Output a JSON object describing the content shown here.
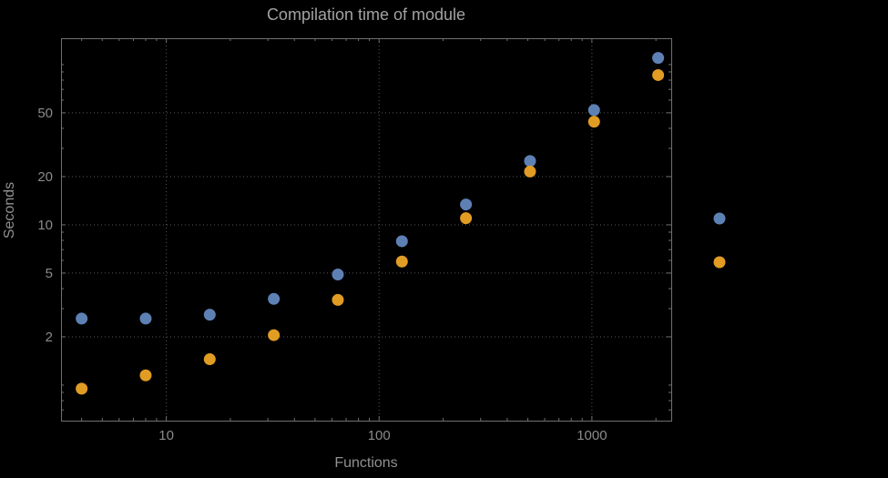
{
  "chart_data": {
    "type": "scatter",
    "title": "Compilation time of module",
    "xlabel": "Functions",
    "ylabel": "Seconds",
    "x_scale": "log",
    "y_scale": "log",
    "xlim": [
      3.2,
      2360
    ],
    "ylim": [
      0.6,
      146
    ],
    "grid": {
      "style": "dotted",
      "x_values": [
        10,
        100,
        1000
      ],
      "y_values": [
        2,
        5,
        10,
        20,
        50
      ]
    },
    "x_ticks": [
      {
        "value": 10,
        "label": "10"
      },
      {
        "value": 100,
        "label": "100"
      },
      {
        "value": 1000,
        "label": "1000"
      }
    ],
    "y_ticks": [
      {
        "value": 2,
        "label": "2"
      },
      {
        "value": 5,
        "label": "5"
      },
      {
        "value": 10,
        "label": "10"
      },
      {
        "value": 20,
        "label": "20"
      },
      {
        "value": 50,
        "label": "50"
      }
    ],
    "x": [
      4,
      8,
      16,
      32,
      64,
      128,
      256,
      512,
      1024,
      2048
    ],
    "series": [
      {
        "name": "series-1-blue",
        "color": "#5e81b5",
        "values": [
          2.6,
          2.6,
          2.75,
          3.45,
          4.9,
          7.9,
          13.4,
          25,
          52,
          110
        ]
      },
      {
        "name": "series-2-orange",
        "color": "#e19c24",
        "values": [
          0.95,
          1.15,
          1.45,
          2.05,
          3.4,
          5.9,
          11,
          21.5,
          44,
          86
        ]
      }
    ],
    "legend": {
      "position": "right-outside",
      "labels_visible": false,
      "marker_colors": [
        "#5e81b5",
        "#e19c24"
      ]
    }
  }
}
